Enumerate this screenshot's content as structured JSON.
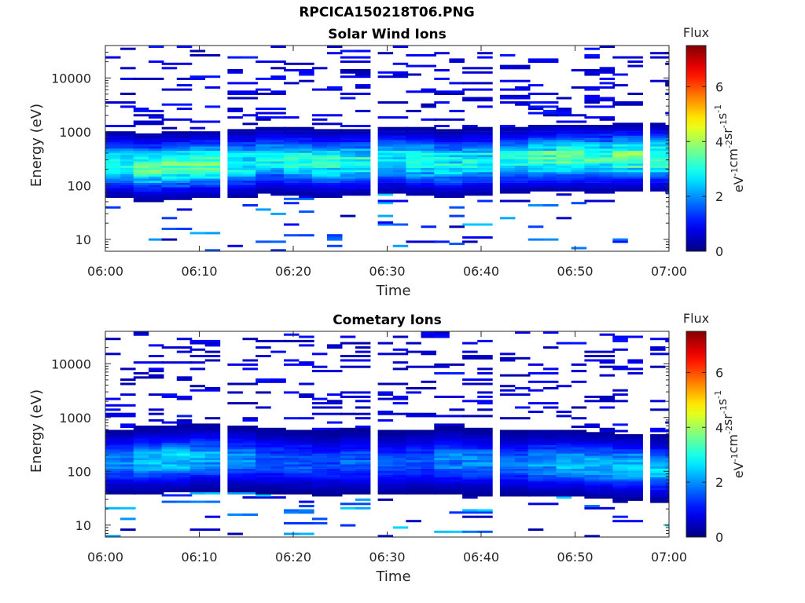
{
  "figure_title": "RPCICA150218T06.PNG",
  "chart_data": [
    {
      "type": "heatmap",
      "title": "Solar Wind Ions",
      "xlabel": "Time",
      "ylabel": "Energy (eV)",
      "yscale": "log",
      "ylim": [
        6,
        40000
      ],
      "xlim": [
        "06:00",
        "07:00"
      ],
      "xticks": [
        "06:00",
        "06:10",
        "06:20",
        "06:30",
        "06:40",
        "06:50",
        "07:00"
      ],
      "yticks": [
        "10",
        "100",
        "1000",
        "10000"
      ],
      "colorbar": {
        "title": "Flux",
        "label_parts": [
          "eV",
          "-1",
          "cm",
          "-2",
          "sr",
          "-1",
          "s",
          "-1"
        ],
        "range": [
          0,
          7.5
        ],
        "ticks": [
          "0",
          "2",
          "4",
          "6"
        ],
        "colormap": "jet"
      },
      "scan_period_minutes": 3.2,
      "scans": [
        {
          "t": "06:00",
          "core_energy_ev": 250,
          "peak_flux": 3.4
        },
        {
          "t": "06:03",
          "core_energy_ev": 220,
          "peak_flux": 3.7
        },
        {
          "t": "06:06",
          "core_energy_ev": 230,
          "peak_flux": 3.9
        },
        {
          "t": "06:09",
          "core_energy_ev": 250,
          "peak_flux": 3.8
        },
        {
          "t": "06:13",
          "core_energy_ev": 260,
          "peak_flux": 3.5
        },
        {
          "t": "06:16",
          "core_energy_ev": 300,
          "peak_flux": 3.2
        },
        {
          "t": "06:19",
          "core_energy_ev": 280,
          "peak_flux": 3.4
        },
        {
          "t": "06:22",
          "core_energy_ev": 260,
          "peak_flux": 3.5
        },
        {
          "t": "06:25",
          "core_energy_ev": 270,
          "peak_flux": 3.4
        },
        {
          "t": "06:29",
          "core_energy_ev": 300,
          "peak_flux": 3.2
        },
        {
          "t": "06:32",
          "core_energy_ev": 280,
          "peak_flux": 3.4
        },
        {
          "t": "06:35",
          "core_energy_ev": 260,
          "peak_flux": 3.3
        },
        {
          "t": "06:38",
          "core_energy_ev": 280,
          "peak_flux": 3.2
        },
        {
          "t": "06:42",
          "core_energy_ev": 300,
          "peak_flux": 3.3
        },
        {
          "t": "06:45",
          "core_energy_ev": 320,
          "peak_flux": 3.7
        },
        {
          "t": "06:48",
          "core_energy_ev": 330,
          "peak_flux": 3.9
        },
        {
          "t": "06:51",
          "core_energy_ev": 330,
          "peak_flux": 3.8
        },
        {
          "t": "06:54",
          "core_energy_ev": 340,
          "peak_flux": 4.0
        },
        {
          "t": "06:58",
          "core_energy_ev": 330,
          "peak_flux": 3.9
        }
      ]
    },
    {
      "type": "heatmap",
      "title": "Cometary Ions",
      "xlabel": "Time",
      "ylabel": "Energy (eV)",
      "yscale": "log",
      "ylim": [
        6,
        40000
      ],
      "xlim": [
        "06:00",
        "07:00"
      ],
      "xticks": [
        "06:00",
        "06:10",
        "06:20",
        "06:30",
        "06:40",
        "06:50",
        "07:00"
      ],
      "yticks": [
        "10",
        "100",
        "1000",
        "10000"
      ],
      "colorbar": {
        "title": "Flux",
        "label_parts": [
          "eV",
          "-1",
          "cm",
          "-2",
          "sr",
          "-1",
          "s",
          "-1"
        ],
        "range": [
          0,
          7.5
        ],
        "ticks": [
          "0",
          "2",
          "4",
          "6"
        ],
        "colormap": "jet"
      },
      "scan_period_minutes": 3.2,
      "scans": [
        {
          "t": "06:00",
          "core_energy_ev": 150,
          "peak_flux": 2.1
        },
        {
          "t": "06:03",
          "core_energy_ev": 160,
          "peak_flux": 2.7
        },
        {
          "t": "06:06",
          "core_energy_ev": 170,
          "peak_flux": 2.8
        },
        {
          "t": "06:09",
          "core_energy_ev": 180,
          "peak_flux": 2.5
        },
        {
          "t": "06:13",
          "core_energy_ev": 170,
          "peak_flux": 2.3
        },
        {
          "t": "06:16",
          "core_energy_ev": 160,
          "peak_flux": 1.8
        },
        {
          "t": "06:19",
          "core_energy_ev": 150,
          "peak_flux": 1.8
        },
        {
          "t": "06:22",
          "core_energy_ev": 140,
          "peak_flux": 1.7
        },
        {
          "t": "06:25",
          "core_energy_ev": 150,
          "peak_flux": 1.9
        },
        {
          "t": "06:29",
          "core_energy_ev": 140,
          "peak_flux": 1.7
        },
        {
          "t": "06:32",
          "core_energy_ev": 150,
          "peak_flux": 1.8
        },
        {
          "t": "06:35",
          "core_energy_ev": 160,
          "peak_flux": 2.2
        },
        {
          "t": "06:38",
          "core_energy_ev": 150,
          "peak_flux": 2.2
        },
        {
          "t": "06:42",
          "core_energy_ev": 140,
          "peak_flux": 1.9
        },
        {
          "t": "06:45",
          "core_energy_ev": 140,
          "peak_flux": 2.4
        },
        {
          "t": "06:48",
          "core_energy_ev": 140,
          "peak_flux": 2.7
        },
        {
          "t": "06:51",
          "core_energy_ev": 130,
          "peak_flux": 2.6
        },
        {
          "t": "06:54",
          "core_energy_ev": 120,
          "peak_flux": 2.7
        },
        {
          "t": "06:58",
          "core_energy_ev": 110,
          "peak_flux": 2.7
        }
      ]
    }
  ]
}
